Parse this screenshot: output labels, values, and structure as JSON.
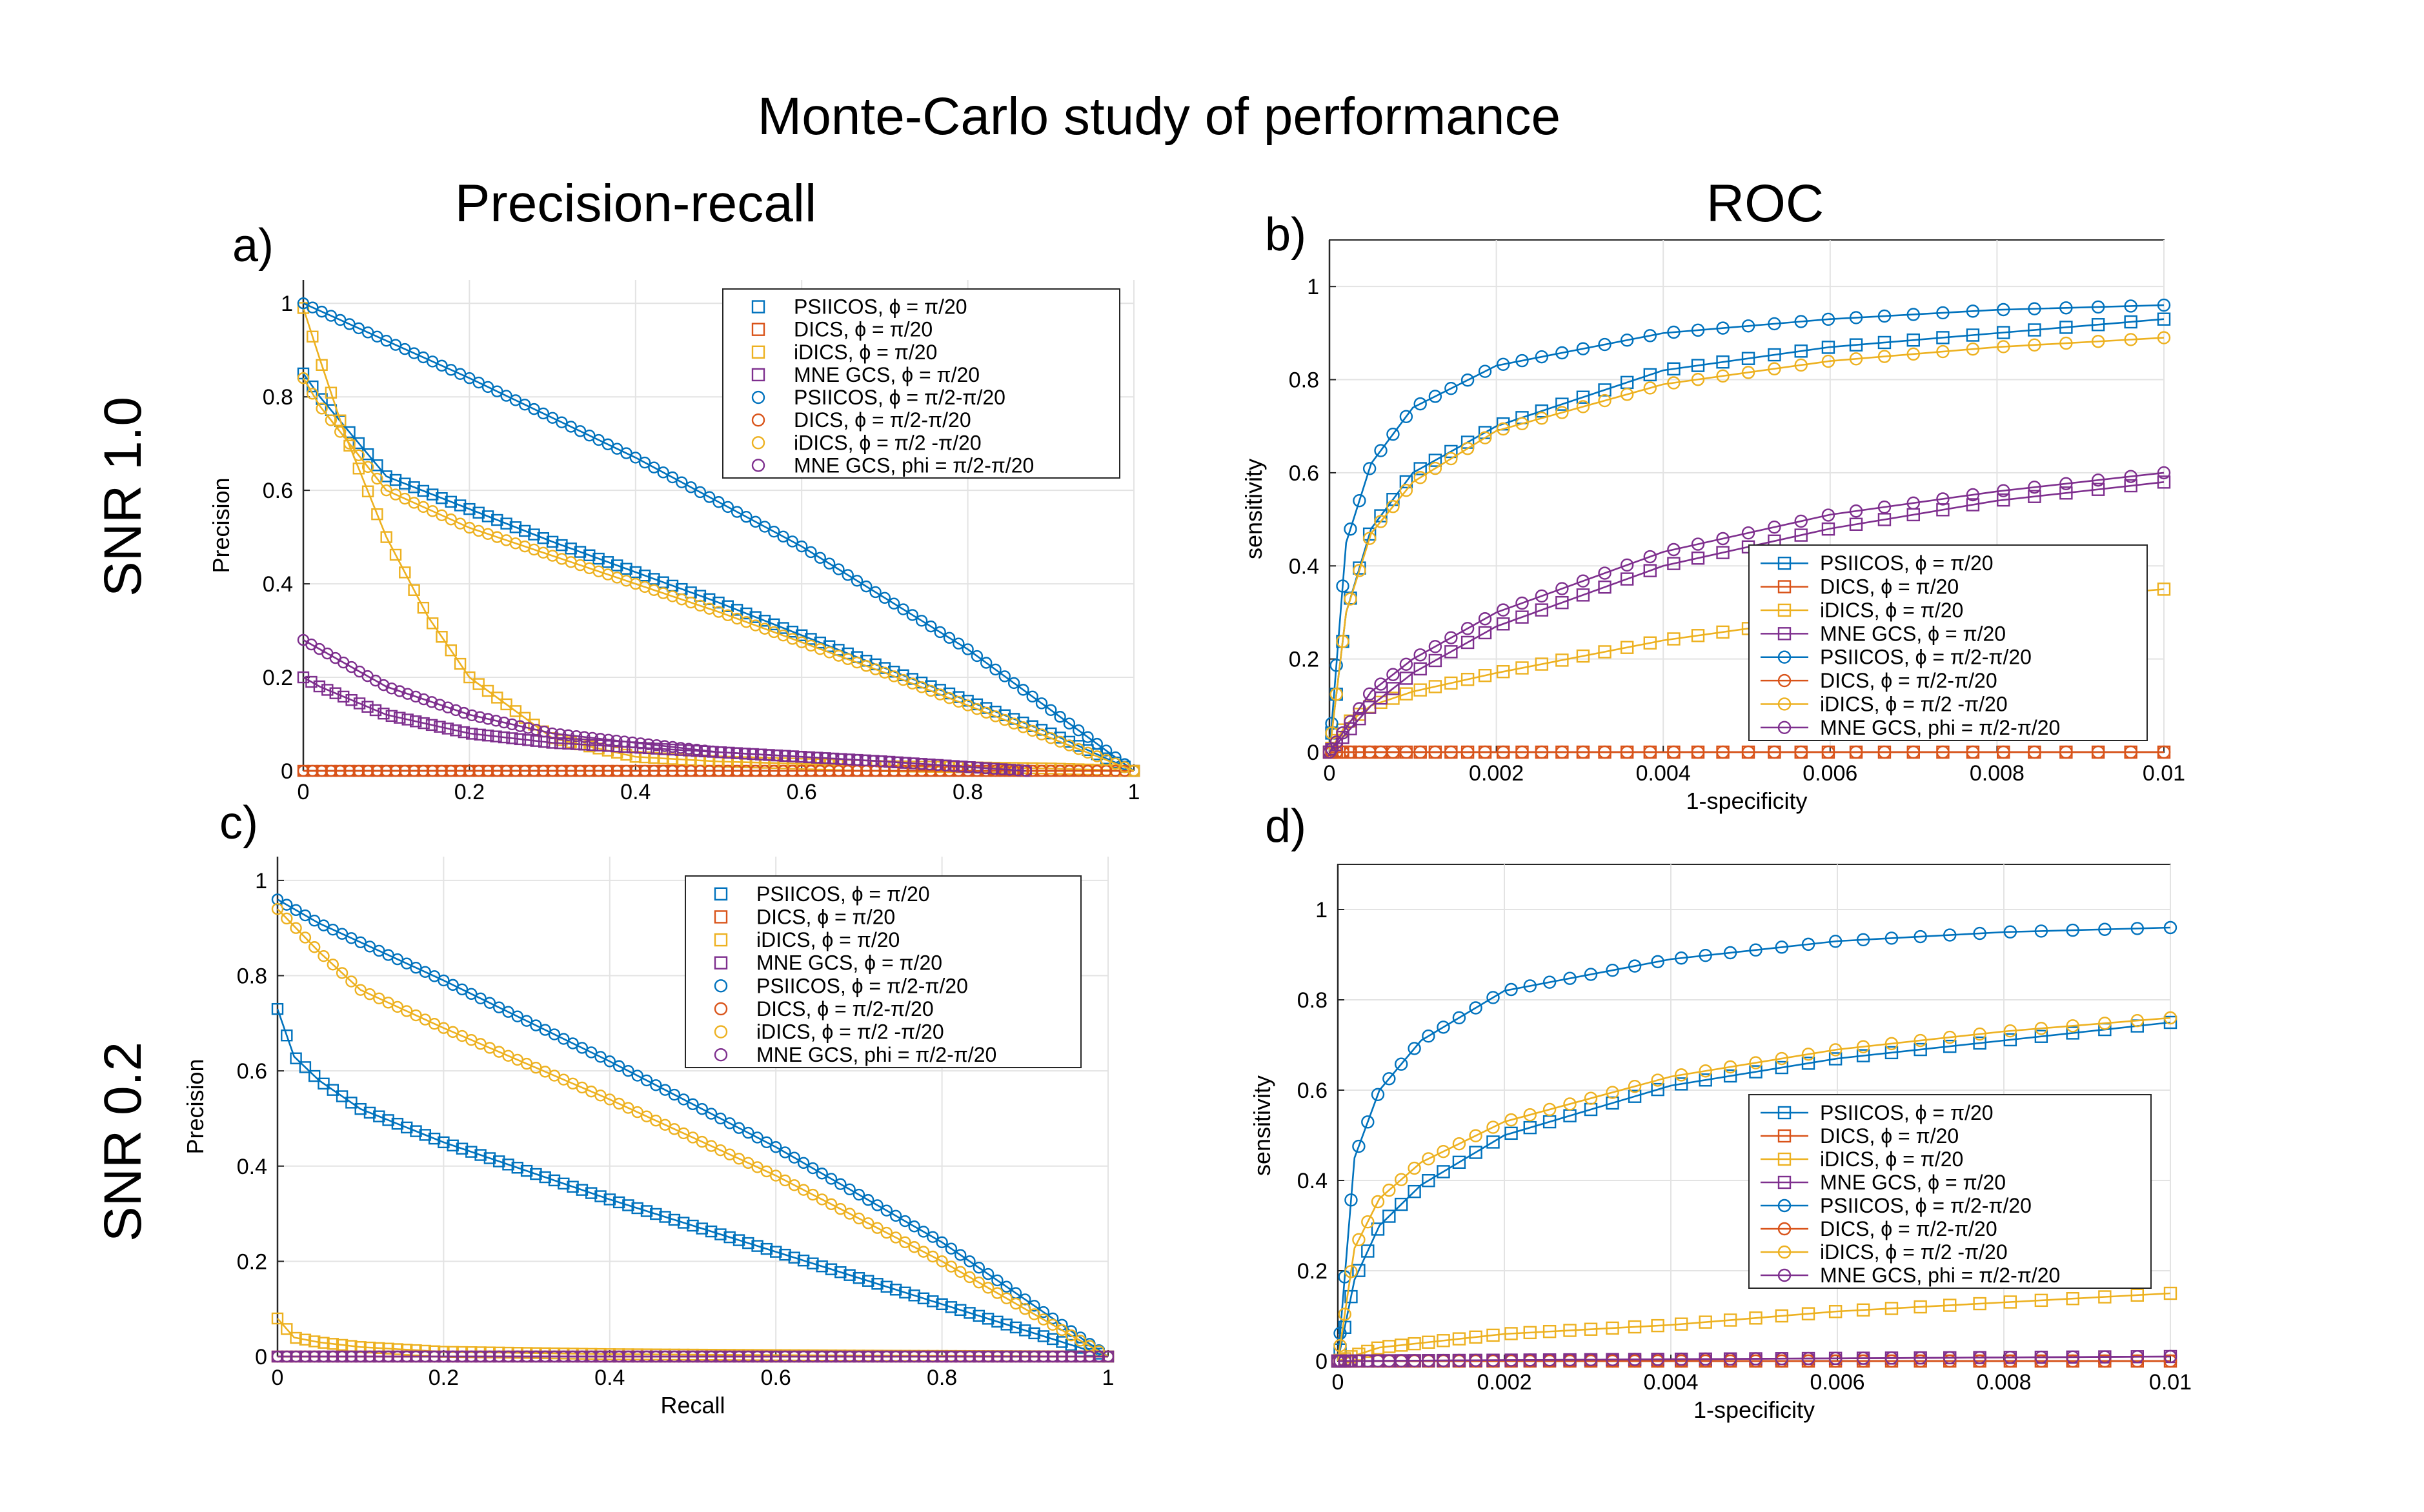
{
  "figure": {
    "title": "Monte-Carlo study of performance",
    "column_titles": [
      "Precision-recall",
      "ROC"
    ],
    "row_labels": [
      "SNR 1.0",
      "SNR 0.2"
    ]
  },
  "colors": {
    "blue": "#0072bd",
    "orange": "#d95319",
    "yellow": "#edb120",
    "purple": "#7e2f8e"
  },
  "legend_entries": [
    {
      "label": "PSIICOS, ϕ = π/20",
      "marker": "square",
      "color": "blue"
    },
    {
      "label": "DICS, ϕ =   π/20",
      "marker": "square",
      "color": "orange"
    },
    {
      "label": "iDICS, ϕ =  π/20",
      "marker": "square",
      "color": "yellow"
    },
    {
      "label": "MNE GCS, ϕ = π/20",
      "marker": "square",
      "color": "purple"
    },
    {
      "label": "PSIICOS, ϕ = π/2-π/20",
      "marker": "circle",
      "color": "blue"
    },
    {
      "label": "DICS, ϕ = π/2-π/20",
      "marker": "circle",
      "color": "orange"
    },
    {
      "label": "iDICS, ϕ = π/2 -π/20",
      "marker": "circle",
      "color": "yellow"
    },
    {
      "label": "MNE GCS, phi = π/2-π/20",
      "marker": "circle",
      "color": "purple"
    }
  ],
  "chart_data": [
    {
      "panel": "a)",
      "type": "line",
      "title": "",
      "xlabel": "",
      "ylabel": "Precision",
      "xlim": [
        0,
        1
      ],
      "ylim": [
        0,
        1.05
      ],
      "xticks": [
        "0",
        "0.2",
        "0.4",
        "0.6",
        "0.8",
        "1"
      ],
      "yticks": [
        "0",
        "0.2",
        "0.4",
        "0.6",
        "0.8",
        "1"
      ],
      "grid": true,
      "legend": "top-right",
      "connect_lines": false,
      "series": [
        {
          "legend_index": 0,
          "x": [
            0,
            0.02,
            0.1,
            0.2,
            0.3,
            0.5,
            0.7,
            0.9,
            1.0
          ],
          "y": [
            0.85,
            0.8,
            0.63,
            0.56,
            0.49,
            0.36,
            0.22,
            0.08,
            0.0
          ]
        },
        {
          "legend_index": 1,
          "x": [
            0,
            1.0
          ],
          "y": [
            0.0,
            0.0
          ]
        },
        {
          "legend_index": 2,
          "x": [
            0,
            0.02,
            0.05,
            0.1,
            0.15,
            0.2,
            0.3,
            0.4,
            0.5,
            0.7,
            0.9,
            1.0
          ],
          "y": [
            0.99,
            0.88,
            0.72,
            0.5,
            0.33,
            0.2,
            0.07,
            0.03,
            0.02,
            0.01,
            0.005,
            0.0
          ]
        },
        {
          "legend_index": 3,
          "x": [
            0,
            0.02,
            0.1,
            0.2,
            0.3,
            0.5,
            0.7,
            0.87
          ],
          "y": [
            0.2,
            0.18,
            0.12,
            0.08,
            0.06,
            0.04,
            0.02,
            0.0
          ]
        },
        {
          "legend_index": 4,
          "x": [
            0,
            0.2,
            0.4,
            0.6,
            0.8,
            1.0
          ],
          "y": [
            1.0,
            0.84,
            0.67,
            0.48,
            0.26,
            0.0
          ]
        },
        {
          "legend_index": 5,
          "x": [
            0,
            1.0
          ],
          "y": [
            0.0,
            0.0
          ]
        },
        {
          "legend_index": 6,
          "x": [
            0,
            0.02,
            0.1,
            0.2,
            0.3,
            0.5,
            0.7,
            0.9,
            1.0
          ],
          "y": [
            0.84,
            0.78,
            0.6,
            0.52,
            0.46,
            0.34,
            0.21,
            0.07,
            0.0
          ]
        },
        {
          "legend_index": 7,
          "x": [
            0,
            0.02,
            0.1,
            0.2,
            0.3,
            0.5,
            0.7,
            0.87
          ],
          "y": [
            0.28,
            0.26,
            0.18,
            0.12,
            0.08,
            0.04,
            0.02,
            0.0
          ]
        }
      ]
    },
    {
      "panel": "b)",
      "type": "line",
      "title": "",
      "xlabel": "1-specificity",
      "ylabel": "sensitivity",
      "xlim": [
        0,
        0.01
      ],
      "ylim": [
        0,
        1.1
      ],
      "xticks": [
        "0",
        "0.002",
        "0.004",
        "0.006",
        "0.008",
        "0.01"
      ],
      "yticks": [
        "0",
        "0.2",
        "0.4",
        "0.6",
        "0.8",
        "1"
      ],
      "grid": true,
      "legend": "bottom-right",
      "connect_lines": true,
      "series": [
        {
          "legend_index": 0,
          "x": [
            0,
            0.0002,
            0.0005,
            0.001,
            0.002,
            0.004,
            0.006,
            0.008,
            0.01
          ],
          "y": [
            0,
            0.3,
            0.48,
            0.6,
            0.7,
            0.82,
            0.87,
            0.9,
            0.93
          ]
        },
        {
          "legend_index": 1,
          "x": [
            0,
            0.01
          ],
          "y": [
            0.0,
            0.0
          ]
        },
        {
          "legend_index": 2,
          "x": [
            0,
            0.0002,
            0.0005,
            0.001,
            0.002,
            0.004,
            0.006,
            0.008,
            0.01
          ],
          "y": [
            0,
            0.06,
            0.1,
            0.13,
            0.17,
            0.24,
            0.29,
            0.32,
            0.35
          ]
        },
        {
          "legend_index": 3,
          "x": [
            0,
            0.0005,
            0.001,
            0.002,
            0.004,
            0.006,
            0.008,
            0.01
          ],
          "y": [
            0,
            0.1,
            0.17,
            0.27,
            0.4,
            0.48,
            0.54,
            0.58
          ]
        },
        {
          "legend_index": 4,
          "x": [
            0,
            0.0002,
            0.0005,
            0.001,
            0.002,
            0.004,
            0.006,
            0.008,
            0.01
          ],
          "y": [
            0,
            0.45,
            0.62,
            0.74,
            0.83,
            0.9,
            0.93,
            0.95,
            0.96
          ]
        },
        {
          "legend_index": 5,
          "x": [
            0,
            0.01
          ],
          "y": [
            0.0,
            0.0
          ]
        },
        {
          "legend_index": 6,
          "x": [
            0,
            0.0002,
            0.0005,
            0.001,
            0.002,
            0.004,
            0.006,
            0.008,
            0.01
          ],
          "y": [
            0,
            0.3,
            0.47,
            0.58,
            0.69,
            0.79,
            0.84,
            0.87,
            0.89
          ]
        },
        {
          "legend_index": 7,
          "x": [
            0,
            0.0005,
            0.001,
            0.002,
            0.004,
            0.006,
            0.008,
            0.01
          ],
          "y": [
            0,
            0.13,
            0.2,
            0.3,
            0.43,
            0.51,
            0.56,
            0.6
          ]
        }
      ]
    },
    {
      "panel": "c)",
      "type": "line",
      "title": "",
      "xlabel": "Recall",
      "ylabel": "Precision",
      "xlim": [
        0,
        1
      ],
      "ylim": [
        0,
        1.05
      ],
      "xticks": [
        "0",
        "0.2",
        "0.4",
        "0.6",
        "0.8",
        "1"
      ],
      "yticks": [
        "0",
        "0.2",
        "0.4",
        "0.6",
        "0.8",
        "1"
      ],
      "grid": true,
      "legend": "top-right",
      "connect_lines": false,
      "series": [
        {
          "legend_index": 0,
          "x": [
            0,
            0.02,
            0.05,
            0.1,
            0.2,
            0.4,
            0.6,
            0.8,
            1.0
          ],
          "y": [
            0.73,
            0.63,
            0.58,
            0.52,
            0.45,
            0.33,
            0.22,
            0.11,
            0.0
          ]
        },
        {
          "legend_index": 1,
          "x": [
            0,
            1.0
          ],
          "y": [
            0.0,
            0.0
          ]
        },
        {
          "legend_index": 2,
          "x": [
            0,
            0.02,
            0.05,
            0.1,
            0.2,
            0.4,
            0.7,
            1.0
          ],
          "y": [
            0.08,
            0.04,
            0.03,
            0.02,
            0.01,
            0.005,
            0.002,
            0.0
          ]
        },
        {
          "legend_index": 3,
          "x": [
            0,
            1.0
          ],
          "y": [
            0.0,
            0.0
          ]
        },
        {
          "legend_index": 4,
          "x": [
            0,
            0.05,
            0.1,
            0.2,
            0.4,
            0.6,
            0.8,
            1.0
          ],
          "y": [
            0.96,
            0.91,
            0.87,
            0.79,
            0.62,
            0.44,
            0.24,
            0.0
          ]
        },
        {
          "legend_index": 5,
          "x": [
            0,
            1.0
          ],
          "y": [
            0.0,
            0.0
          ]
        },
        {
          "legend_index": 6,
          "x": [
            0,
            0.05,
            0.1,
            0.2,
            0.4,
            0.6,
            0.8,
            1.0
          ],
          "y": [
            0.94,
            0.85,
            0.77,
            0.69,
            0.54,
            0.38,
            0.2,
            0.0
          ]
        },
        {
          "legend_index": 7,
          "x": [
            0,
            1.0
          ],
          "y": [
            0.0,
            0.0
          ]
        }
      ]
    },
    {
      "panel": "d)",
      "type": "line",
      "title": "",
      "xlabel": "1-specificity",
      "ylabel": "sensitivity",
      "xlim": [
        0,
        0.01
      ],
      "ylim": [
        0,
        1.1
      ],
      "xticks": [
        "0",
        "0.002",
        "0.004",
        "0.006",
        "0.008",
        "0.01"
      ],
      "yticks": [
        "0",
        "0.2",
        "0.4",
        "0.6",
        "0.8",
        "1"
      ],
      "grid": true,
      "legend": "bottom-right",
      "connect_lines": true,
      "series": [
        {
          "legend_index": 0,
          "x": [
            0,
            0.0002,
            0.0005,
            0.001,
            0.002,
            0.004,
            0.006,
            0.008,
            0.01
          ],
          "y": [
            0,
            0.18,
            0.3,
            0.39,
            0.5,
            0.61,
            0.67,
            0.71,
            0.75
          ]
        },
        {
          "legend_index": 1,
          "x": [
            0,
            0.01
          ],
          "y": [
            0.0,
            0.0
          ]
        },
        {
          "legend_index": 2,
          "x": [
            0,
            0.0005,
            0.001,
            0.002,
            0.004,
            0.006,
            0.008,
            0.01
          ],
          "y": [
            0,
            0.03,
            0.04,
            0.06,
            0.08,
            0.11,
            0.13,
            0.15
          ]
        },
        {
          "legend_index": 3,
          "x": [
            0,
            0.01
          ],
          "y": [
            0.0,
            0.01
          ]
        },
        {
          "legend_index": 4,
          "x": [
            0,
            0.0002,
            0.0005,
            0.001,
            0.002,
            0.004,
            0.006,
            0.008,
            0.01
          ],
          "y": [
            0,
            0.45,
            0.6,
            0.71,
            0.82,
            0.89,
            0.93,
            0.95,
            0.96
          ]
        },
        {
          "legend_index": 5,
          "x": [
            0,
            0.01
          ],
          "y": [
            0.0,
            0.0
          ]
        },
        {
          "legend_index": 6,
          "x": [
            0,
            0.0002,
            0.0005,
            0.001,
            0.002,
            0.004,
            0.006,
            0.008,
            0.01
          ],
          "y": [
            0,
            0.25,
            0.36,
            0.44,
            0.53,
            0.63,
            0.69,
            0.73,
            0.76
          ]
        },
        {
          "legend_index": 7,
          "x": [
            0,
            0.01
          ],
          "y": [
            0.0,
            0.01
          ]
        }
      ]
    }
  ]
}
